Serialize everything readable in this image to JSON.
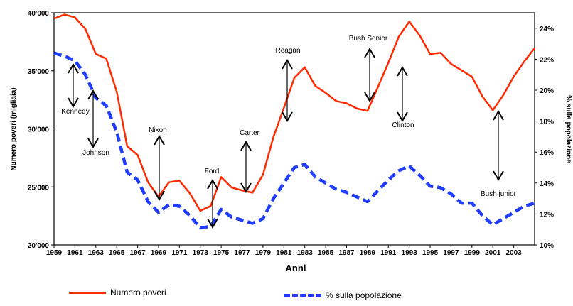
{
  "chart_data": {
    "type": "line",
    "xlabel": "Anni",
    "ylabel_left": "Numero poveri (migliaia)",
    "ylabel_right": "% sulla popolazione",
    "xlim": [
      1959,
      2005
    ],
    "ylim_left": [
      20000,
      40000
    ],
    "ylim_right": [
      10,
      25
    ],
    "x_ticks": [
      "1959",
      "1961",
      "1963",
      "1965",
      "1967",
      "1969",
      "1971",
      "1973",
      "1975",
      "1977",
      "1979",
      "1981",
      "1983",
      "1985",
      "1987",
      "1989",
      "1991",
      "1993",
      "1995",
      "1997",
      "1999",
      "2001",
      "2003"
    ],
    "y_ticks_left": [
      "20'000",
      "25'000",
      "30'000",
      "35'000",
      "40'000"
    ],
    "y_ticks_right": [
      "10%",
      "12%",
      "14%",
      "16%",
      "18%",
      "20%",
      "22%",
      "24%"
    ],
    "x": [
      1959,
      1960,
      1961,
      1962,
      1963,
      1964,
      1965,
      1966,
      1967,
      1968,
      1969,
      1970,
      1971,
      1972,
      1973,
      1974,
      1975,
      1976,
      1977,
      1978,
      1979,
      1980,
      1981,
      1982,
      1983,
      1984,
      1985,
      1986,
      1987,
      1988,
      1989,
      1990,
      1991,
      1992,
      1993,
      1994,
      1995,
      1996,
      1997,
      1998,
      1999,
      2000,
      2001,
      2002,
      2003,
      2004,
      2005
    ],
    "series": [
      {
        "name": "Numero poveri",
        "axis": "left",
        "color": "#ff2a00",
        "style": "solid",
        "values": [
          39500,
          39850,
          39600,
          38600,
          36450,
          36050,
          33200,
          28500,
          27750,
          25400,
          24150,
          25400,
          25550,
          24450,
          22950,
          23350,
          25850,
          24950,
          24700,
          24500,
          26050,
          29300,
          31800,
          34400,
          35300,
          33700,
          33100,
          32400,
          32200,
          31750,
          31550,
          33600,
          35700,
          37950,
          39250,
          38050,
          36450,
          36550,
          35600,
          35050,
          34500,
          32800,
          31600,
          32900,
          34500,
          35800,
          36950
        ]
      },
      {
        "name": "% sulla popolazione",
        "axis": "right",
        "color": "#1f3cff",
        "style": "dashed",
        "values": [
          22.4,
          22.2,
          21.9,
          21.0,
          19.5,
          19.0,
          17.3,
          14.7,
          14.2,
          12.8,
          12.1,
          12.6,
          12.5,
          11.9,
          11.1,
          11.2,
          12.3,
          11.8,
          11.6,
          11.4,
          11.7,
          13.0,
          14.0,
          15.0,
          15.2,
          14.4,
          14.0,
          13.6,
          13.4,
          13.1,
          12.8,
          13.5,
          14.2,
          14.8,
          15.1,
          14.5,
          13.8,
          13.7,
          13.3,
          12.7,
          12.7,
          11.9,
          11.3,
          11.7,
          12.1,
          12.5,
          12.7
        ]
      }
    ],
    "annotations": [
      {
        "label": "Kennedy",
        "year": 1961
      },
      {
        "label": "Johnson",
        "year": 1963
      },
      {
        "label": "Nixon",
        "year": 1969
      },
      {
        "label": "Ford",
        "year": 1974
      },
      {
        "label": "Carter",
        "year": 1977
      },
      {
        "label": "Reagan",
        "year": 1981
      },
      {
        "label": "Bush Senior",
        "year": 1989
      },
      {
        "label": "Clinton",
        "year": 1993
      },
      {
        "label": "Bush junior",
        "year": 2001
      }
    ],
    "grid": false,
    "legend_position": "bottom"
  }
}
